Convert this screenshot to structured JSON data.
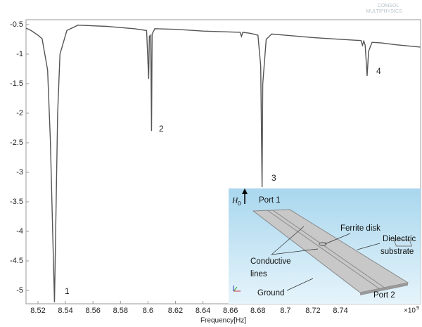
{
  "chart_data": {
    "type": "line",
    "x_label": "Frequency[Hz]",
    "x_exponent_base": "×10",
    "x_exponent": "9",
    "x": [
      8.5113,
      8.515,
      8.52,
      8.523,
      8.527,
      8.529,
      8.532,
      8.5343,
      8.536,
      8.541,
      8.549,
      8.56,
      8.57,
      8.58,
      8.59,
      8.599,
      8.6005,
      8.601,
      8.6017,
      8.602,
      8.6026,
      8.603,
      8.605,
      8.62,
      8.64,
      8.667,
      8.668,
      8.669,
      8.675,
      8.68,
      8.682,
      8.683,
      8.6835,
      8.686,
      8.69,
      8.7,
      8.72,
      8.74,
      8.755,
      8.756,
      8.757,
      8.758,
      8.7594,
      8.7605,
      8.763,
      8.77,
      8.78,
      8.798
    ],
    "series": [
      {
        "color": "#555555",
        "values": [
          -0.56,
          -0.6,
          -0.68,
          -0.74,
          -1.27,
          -2.46,
          -5.2,
          -2.0,
          -1.0,
          -0.6,
          -0.51,
          -0.52,
          -0.53,
          -0.55,
          -0.57,
          -0.6,
          -1.42,
          -0.7,
          -0.68,
          -0.75,
          -2.3,
          -0.66,
          -0.57,
          -0.58,
          -0.61,
          -0.63,
          -0.7,
          -0.63,
          -0.65,
          -0.68,
          -1.2,
          -3.25,
          -1.5,
          -0.75,
          -0.66,
          -0.68,
          -0.72,
          -0.75,
          -0.77,
          -0.85,
          -0.78,
          -0.85,
          -1.37,
          -0.95,
          -0.8,
          -0.81,
          -0.84,
          -0.88
        ]
      }
    ],
    "xlim": [
      8.5113,
      8.7983
    ],
    "xticks": [
      8.52,
      8.54,
      8.56,
      8.58,
      8.6,
      8.62,
      8.64,
      8.66,
      8.68,
      8.7,
      8.72,
      8.74
    ],
    "ylim": [
      -5.226,
      -0.417
    ],
    "yticks": [
      -0.5,
      -1,
      -1.5,
      -2,
      -2.5,
      -3,
      -3.5,
      -4,
      -4.5,
      -5
    ],
    "annotations": [
      "1",
      "2",
      "3",
      "4"
    ]
  },
  "watermark": [
    "COMSOL",
    "MULTIPHYSICS"
  ],
  "inset": {
    "field_label": "H",
    "field_subscript": "0",
    "port1": "Port 1",
    "ferrite": "Ferrite disk",
    "substrate": [
      "Dielectric",
      "substrate"
    ],
    "lines": [
      "Conductive",
      "lines"
    ],
    "ground": "Ground",
    "port2": "Port 2"
  }
}
